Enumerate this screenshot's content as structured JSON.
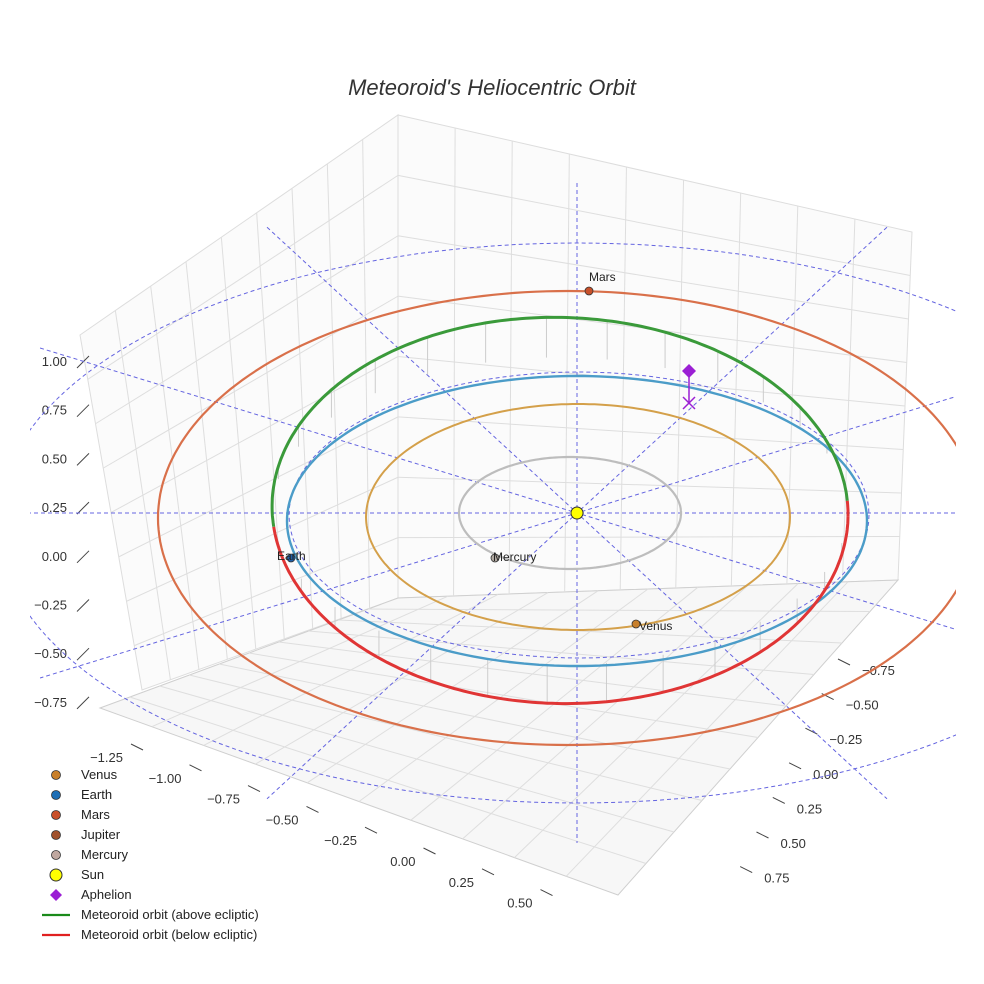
{
  "chart_data": {
    "type": "3d-orbit",
    "title": "Meteoroid's Heliocentric Orbit",
    "axes": {
      "x_ticks": [
        "−1.25",
        "−1.00",
        "−0.75",
        "−0.50",
        "−0.25",
        "0.00",
        "0.25",
        "0.50"
      ],
      "y_ticks": [
        "−0.75",
        "−0.50",
        "−0.25",
        "0.00",
        "0.25",
        "0.50",
        "0.75"
      ],
      "z_ticks": [
        "1.00",
        "0.75",
        "0.50",
        "0.25",
        "0.00",
        "−0.25",
        "−0.50",
        "−0.75"
      ],
      "grid": true
    },
    "orbits": [
      {
        "name": "Mercury",
        "semi_major_axis_au": 0.387,
        "color": "#bdbdbd"
      },
      {
        "name": "Venus",
        "semi_major_axis_au": 0.723,
        "color": "#d4a04a"
      },
      {
        "name": "Earth",
        "semi_major_axis_au": 1.0,
        "color": "#4b9cc8"
      },
      {
        "name": "Mars",
        "semi_major_axis_au": 1.524,
        "color": "#d9704a"
      }
    ],
    "planet_labels": [
      {
        "name": "Mars",
        "color": "#c8502a"
      },
      {
        "name": "Earth",
        "color": "#1f5fa8"
      },
      {
        "name": "Mercury",
        "color": "#b0a8a0"
      },
      {
        "name": "Venus",
        "color": "#c87f2a"
      }
    ],
    "meteoroid": {
      "above_color": "#3a9a3a",
      "below_color": "#e03535",
      "aphelion_color": "#9b1fd4"
    },
    "legend": [
      {
        "label": "Venus",
        "marker": "circle",
        "color": "#c87f2a"
      },
      {
        "label": "Earth",
        "marker": "circle",
        "color": "#1f6fb5"
      },
      {
        "label": "Mars",
        "marker": "circle",
        "color": "#c8502a"
      },
      {
        "label": "Jupiter",
        "marker": "circle",
        "color": "#a0522d"
      },
      {
        "label": "Mercury",
        "marker": "circle",
        "color": "#c0a8a0"
      },
      {
        "label": "Sun",
        "marker": "circle-large",
        "color": "#ffff00"
      },
      {
        "label": "Aphelion",
        "marker": "diamond",
        "color": "#9b1fd4"
      },
      {
        "label": "Meteoroid orbit (above ecliptic)",
        "marker": "line",
        "color": "#1a8a1a"
      },
      {
        "label": "Meteoroid orbit (below ecliptic)",
        "marker": "line",
        "color": "#e02020"
      }
    ]
  }
}
